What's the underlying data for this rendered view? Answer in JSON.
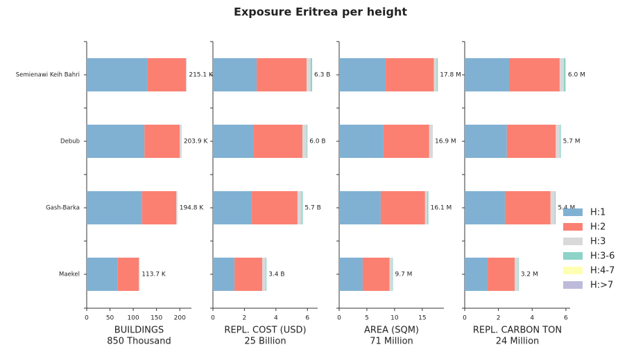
{
  "title": "Exposure Eritrea per height",
  "chart_data": [
    {
      "type": "bar",
      "orientation": "horizontal",
      "xlabel": "BUILDINGS",
      "xlabel_sub": "850 Thousand",
      "categories": [
        "Semienawi Keih Bahri",
        "Debub",
        "Gash-Barka",
        "Maekel"
      ],
      "series": [
        {
          "name": "H:1",
          "color": "#80b1d3",
          "values": [
            131,
            124,
            119,
            66
          ]
        },
        {
          "name": "H:2",
          "color": "#fb8072",
          "values": [
            82.4,
            76,
            73.5,
            46
          ]
        },
        {
          "name": "H:3",
          "color": "#d9d9d9",
          "values": [
            1.5,
            3.5,
            2,
            1.5
          ]
        },
        {
          "name": "H:3-6",
          "color": "#8dd3c7",
          "values": [
            0.2,
            0.4,
            0.3,
            0.2
          ]
        },
        {
          "name": "H:4-7",
          "color": "#ffffb3",
          "values": [
            0,
            0,
            0,
            0
          ]
        },
        {
          "name": "H:>7",
          "color": "#bebada",
          "values": [
            0,
            0,
            0,
            0
          ]
        }
      ],
      "totals": [
        215.1,
        203.9,
        194.8,
        113.7
      ],
      "total_labels": [
        "215.1 K",
        "203.9 K",
        "194.8 K",
        "113.7 K"
      ],
      "xlim": [
        0,
        225
      ],
      "xticks": [
        0,
        50,
        100,
        150,
        200
      ]
    },
    {
      "type": "bar",
      "orientation": "horizontal",
      "xlabel": "REPL. COST (USD)",
      "xlabel_sub": "25 Billion",
      "series": [
        {
          "values": [
            2.78,
            2.6,
            2.47,
            1.37
          ]
        },
        {
          "values": [
            3.17,
            3.08,
            2.9,
            1.76
          ]
        },
        {
          "values": [
            0.25,
            0.27,
            0.25,
            0.22
          ]
        },
        {
          "values": [
            0.1,
            0.05,
            0.08,
            0.05
          ]
        },
        {
          "values": [
            0,
            0,
            0,
            0
          ]
        },
        {
          "values": [
            0,
            0,
            0,
            0
          ]
        }
      ],
      "totals": [
        6.3,
        6.0,
        5.7,
        3.4
      ],
      "total_labels": [
        "6.3 B",
        "6.0 B",
        "5.7 B",
        "3.4 B"
      ],
      "xlim": [
        0,
        6.65
      ],
      "xticks": [
        0,
        2,
        4,
        6
      ]
    },
    {
      "type": "bar",
      "orientation": "horizontal",
      "xlabel": "AREA (SQM)",
      "xlabel_sub": "71 Million",
      "series": [
        {
          "values": [
            8.4,
            8.0,
            7.5,
            4.25
          ]
        },
        {
          "values": [
            8.7,
            8.25,
            8.0,
            4.85
          ]
        },
        {
          "values": [
            0.5,
            0.65,
            0.4,
            0.5
          ]
        },
        {
          "values": [
            0.2,
            0,
            0.2,
            0.1
          ]
        },
        {
          "values": [
            0,
            0,
            0,
            0
          ]
        },
        {
          "values": [
            0,
            0,
            0,
            0
          ]
        }
      ],
      "totals": [
        17.8,
        16.9,
        16.1,
        9.7
      ],
      "total_labels": [
        "17.8 M",
        "16.9 M",
        "16.1 M",
        "9.7 M"
      ],
      "xlim": [
        0,
        18.9
      ],
      "xticks": [
        0,
        5,
        10,
        15
      ]
    },
    {
      "type": "bar",
      "orientation": "horizontal",
      "xlabel": "REPL. CARBON TON",
      "xlabel_sub": "24 Million",
      "series": [
        {
          "values": [
            2.63,
            2.5,
            2.39,
            1.36
          ]
        },
        {
          "values": [
            3.0,
            2.9,
            2.7,
            1.6
          ]
        },
        {
          "values": [
            0.25,
            0.25,
            0.25,
            0.2
          ]
        },
        {
          "values": [
            0.1,
            0.05,
            0.05,
            0.04
          ]
        },
        {
          "values": [
            0,
            0,
            0,
            0
          ]
        },
        {
          "values": [
            0,
            0,
            0,
            0
          ]
        }
      ],
      "totals": [
        6.0,
        5.7,
        5.4,
        3.2
      ],
      "total_labels": [
        "6.0 M",
        "5.7 M",
        "5.4 M",
        "3.2 M"
      ],
      "xlim": [
        0,
        6.25
      ],
      "xticks": [
        0,
        2,
        4,
        6
      ]
    }
  ]
}
